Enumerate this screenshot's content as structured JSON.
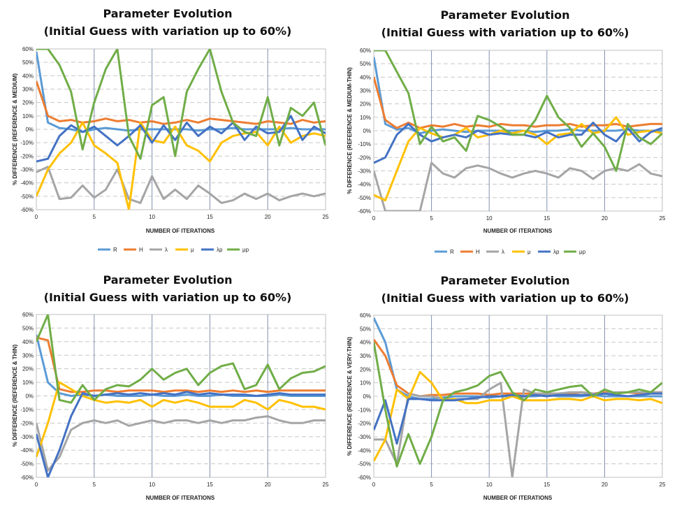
{
  "legend_labels": [
    "R",
    "H",
    "λ",
    "μ",
    "λp",
    "μp"
  ],
  "colors": {
    "R": "#5b9bd5",
    "H": "#ed7d31",
    "λ": "#a5a5a5",
    "μ": "#ffc000",
    "λp": "#4472c4",
    "μp": "#70ad47"
  },
  "chart_data": [
    {
      "type": "line",
      "title": "Parameter Evolution",
      "subtitle": "(Initial Guess with variation up to 60%)",
      "xlabel": "NUMBER OF ITERATIONS",
      "ylabel": "% DIFFERENCE (REFERENCE & MEDIUM)",
      "xlim": [
        0,
        25
      ],
      "ylim": [
        -60,
        60
      ],
      "x_ticks": [
        "0",
        "5",
        "10",
        "15",
        "20",
        "25"
      ],
      "y_ticks": [
        "60%",
        "50%",
        "40%",
        "30%",
        "20%",
        "10%",
        "0%",
        "-10%",
        "-20%",
        "-30%",
        "-40%",
        "-50%",
        "-60%"
      ],
      "x": [
        0,
        1,
        2,
        3,
        4,
        5,
        6,
        7,
        8,
        9,
        10,
        11,
        12,
        13,
        14,
        15,
        16,
        17,
        18,
        19,
        20,
        21,
        22,
        23,
        24,
        25
      ],
      "series": [
        {
          "name": "R",
          "values": [
            58,
            5,
            1,
            0,
            -2,
            0,
            1,
            0,
            -1,
            0,
            0,
            0,
            0,
            0,
            -1,
            0,
            0,
            1,
            0,
            0,
            0,
            0,
            1,
            0,
            0,
            0
          ]
        },
        {
          "name": "H",
          "values": [
            36,
            10,
            6,
            7,
            5,
            6,
            8,
            6,
            7,
            5,
            6,
            4,
            5,
            7,
            5,
            8,
            7,
            6,
            5,
            4,
            6,
            5,
            4,
            7,
            5,
            6
          ]
        },
        {
          "name": "λ",
          "values": [
            -32,
            -28,
            -52,
            -51,
            -42,
            -51,
            -45,
            -30,
            -52,
            -55,
            -35,
            -52,
            -45,
            -52,
            -42,
            -48,
            -55,
            -53,
            -48,
            -52,
            -48,
            -53,
            -50,
            -48,
            -50,
            -48
          ]
        },
        {
          "name": "μ",
          "values": [
            -50,
            -30,
            -18,
            -10,
            5,
            -12,
            -18,
            -25,
            -60,
            5,
            -8,
            -10,
            2,
            -12,
            -16,
            -24,
            -10,
            -5,
            -3,
            -2,
            -12,
            2,
            -10,
            -5,
            -3,
            -5
          ]
        },
        {
          "name": "λp",
          "values": [
            -24,
            -22,
            -5,
            3,
            -2,
            2,
            -5,
            -12,
            -5,
            3,
            -10,
            3,
            -8,
            5,
            -5,
            2,
            -3,
            5,
            -8,
            2,
            -3,
            -2,
            10,
            -8,
            2,
            -3
          ]
        },
        {
          "name": "μp",
          "values": [
            60,
            60,
            48,
            28,
            -15,
            20,
            45,
            60,
            -5,
            -22,
            18,
            24,
            -20,
            28,
            45,
            60,
            28,
            5,
            -2,
            -5,
            24,
            -12,
            16,
            10,
            20,
            -12
          ]
        }
      ]
    },
    {
      "type": "line",
      "title": "Parameter Evolution",
      "subtitle": "(Initial Guess with variation up to 60%)",
      "xlabel": "NUMBER OF ITERATIONS",
      "ylabel": "% DIFFERENCE (REFERENCE & MEDIUM-THIN)",
      "xlim": [
        0,
        25
      ],
      "ylim": [
        -60,
        60
      ],
      "x_ticks": [
        "0",
        "5",
        "10",
        "15",
        "20",
        "25"
      ],
      "y_ticks": [
        "60%",
        "50%",
        "40%",
        "30%",
        "20%",
        "10%",
        "0%",
        "-10%",
        "-20%",
        "-30%",
        "-40%",
        "-50%",
        "-60%"
      ],
      "x": [
        0,
        1,
        2,
        3,
        4,
        5,
        6,
        7,
        8,
        9,
        10,
        11,
        12,
        13,
        14,
        15,
        16,
        17,
        18,
        19,
        20,
        21,
        22,
        23,
        24,
        25
      ],
      "series": [
        {
          "name": "R",
          "values": [
            55,
            5,
            1,
            2,
            -2,
            0,
            1,
            0,
            -1,
            0,
            0,
            0,
            0,
            0,
            -1,
            0,
            0,
            1,
            0,
            0,
            0,
            0,
            1,
            0,
            0,
            0
          ]
        },
        {
          "name": "H",
          "values": [
            40,
            8,
            2,
            6,
            2,
            4,
            3,
            5,
            3,
            4,
            3,
            5,
            4,
            4,
            3,
            4,
            4,
            5,
            3,
            4,
            4,
            5,
            3,
            4,
            5,
            5
          ]
        },
        {
          "name": "λ",
          "values": [
            -30,
            -60,
            -60,
            -60,
            -60,
            -24,
            -32,
            -35,
            -28,
            -26,
            -28,
            -32,
            -35,
            -32,
            -30,
            -32,
            -35,
            -28,
            -30,
            -36,
            -30,
            -28,
            -30,
            -25,
            -32,
            -34
          ]
        },
        {
          "name": "μ",
          "values": [
            -48,
            -52,
            -30,
            -8,
            2,
            -2,
            -5,
            -3,
            2,
            -5,
            -3,
            0,
            -2,
            0,
            -3,
            -10,
            -3,
            -2,
            5,
            -2,
            0,
            10,
            -3,
            -1,
            0,
            -2
          ]
        },
        {
          "name": "λp",
          "values": [
            -24,
            -20,
            -3,
            5,
            -3,
            -8,
            -5,
            -3,
            -5,
            0,
            -3,
            -2,
            -3,
            -3,
            -5,
            -1,
            -5,
            -3,
            -3,
            6,
            -3,
            -8,
            2,
            -8,
            -1,
            2
          ]
        },
        {
          "name": "μp",
          "values": [
            60,
            60,
            44,
            28,
            -10,
            3,
            -8,
            -5,
            -15,
            11,
            8,
            3,
            -3,
            -3,
            8,
            26,
            10,
            2,
            -12,
            -2,
            -12,
            -30,
            5,
            -5,
            -10,
            -2
          ]
        }
      ]
    },
    {
      "type": "line",
      "title": "Parameter Evolution",
      "subtitle": "(Initial Guess with variation up to 60%)",
      "xlabel": "NUMBER OF ITERATIONS",
      "ylabel": "% DIFFERENCE (REFERENCE & THIN)",
      "xlim": [
        0,
        25
      ],
      "ylim": [
        -60,
        60
      ],
      "x_ticks": [
        "0",
        "5",
        "10",
        "15",
        "20",
        "25"
      ],
      "y_ticks": [
        "60%",
        "50%",
        "40%",
        "30%",
        "20%",
        "10%",
        "0%",
        "-10%",
        "-20%",
        "-30%",
        "-40%",
        "-50%",
        "-60%"
      ],
      "x": [
        0,
        1,
        2,
        3,
        4,
        5,
        6,
        7,
        8,
        9,
        10,
        11,
        12,
        13,
        14,
        15,
        16,
        17,
        18,
        19,
        20,
        21,
        22,
        23,
        24,
        25
      ],
      "series": [
        {
          "name": "R",
          "values": [
            45,
            10,
            2,
            0,
            1,
            0,
            1,
            0,
            0,
            0,
            1,
            0,
            0,
            1,
            0,
            0,
            1,
            0,
            0,
            0,
            0,
            1,
            0,
            0,
            0,
            0
          ]
        },
        {
          "name": "H",
          "values": [
            43,
            41,
            5,
            3,
            3,
            4,
            4,
            3,
            4,
            4,
            4,
            3,
            4,
            4,
            3,
            4,
            3,
            4,
            3,
            4,
            3,
            4,
            4,
            4,
            4,
            4
          ]
        },
        {
          "name": "λ",
          "values": [
            -20,
            -55,
            -45,
            -25,
            -20,
            -18,
            -20,
            -18,
            -22,
            -20,
            -18,
            -20,
            -18,
            -18,
            -20,
            -18,
            -20,
            -18,
            -18,
            -16,
            -15,
            -18,
            -20,
            -20,
            -18,
            -18
          ]
        },
        {
          "name": "μ",
          "values": [
            -45,
            -20,
            10,
            5,
            0,
            -3,
            -5,
            -4,
            -5,
            -3,
            -8,
            -3,
            -5,
            -3,
            -5,
            -8,
            -8,
            -8,
            -3,
            -5,
            -10,
            -3,
            -5,
            -8,
            -8,
            -10
          ]
        },
        {
          "name": "λp",
          "values": [
            -28,
            -60,
            -40,
            -15,
            2,
            0,
            1,
            2,
            1,
            2,
            1,
            2,
            1,
            3,
            1,
            2,
            1,
            1,
            1,
            0,
            1,
            2,
            1,
            1,
            1,
            1
          ]
        },
        {
          "name": "μp",
          "values": [
            40,
            60,
            -3,
            -5,
            8,
            -3,
            5,
            8,
            7,
            12,
            20,
            12,
            17,
            20,
            8,
            17,
            22,
            24,
            5,
            8,
            23,
            5,
            13,
            17,
            18,
            22
          ]
        }
      ]
    },
    {
      "type": "line",
      "title": "Parameter Evolution",
      "subtitle": "(Initial Guess with variation up to 60%)",
      "xlabel": "NUMBER OF ITERATIONS",
      "ylabel": "% DIFFERENCE (REFERENCE & VERY-THIN)",
      "xlim": [
        0,
        25
      ],
      "ylim": [
        -60,
        60
      ],
      "x_ticks": [
        "0",
        "5",
        "10",
        "15",
        "20",
        "25"
      ],
      "y_ticks": [
        "60%",
        "50%",
        "40%",
        "30%",
        "20%",
        "10%",
        "0%",
        "-10%",
        "-20%",
        "-30%",
        "-40%",
        "-50%",
        "-60%"
      ],
      "x": [
        0,
        1,
        2,
        3,
        4,
        5,
        6,
        7,
        8,
        9,
        10,
        11,
        12,
        13,
        14,
        15,
        16,
        17,
        18,
        19,
        20,
        21,
        22,
        23,
        24,
        25
      ],
      "series": [
        {
          "name": "R",
          "values": [
            58,
            40,
            5,
            0,
            -2,
            -2,
            -1,
            0,
            0,
            0,
            -1,
            0,
            0,
            0,
            0,
            1,
            0,
            0,
            0,
            1,
            0,
            0,
            0,
            0,
            0,
            0
          ]
        },
        {
          "name": "H",
          "values": [
            42,
            30,
            8,
            2,
            0,
            1,
            1,
            2,
            2,
            2,
            1,
            2,
            2,
            2,
            2,
            2,
            2,
            2,
            3,
            2,
            3,
            2,
            3,
            2,
            3,
            3
          ]
        },
        {
          "name": "λ",
          "values": [
            -32,
            -32,
            -50,
            2,
            0,
            0,
            -2,
            -2,
            -2,
            -2,
            5,
            10,
            -60,
            5,
            2,
            2,
            2,
            3,
            3,
            2,
            2,
            3,
            3,
            3,
            3,
            3
          ]
        },
        {
          "name": "μ",
          "values": [
            -48,
            -32,
            5,
            -2,
            18,
            10,
            -3,
            -2,
            -5,
            -5,
            -3,
            -3,
            0,
            -3,
            -3,
            -3,
            -2,
            -2,
            -3,
            0,
            -3,
            -2,
            -2,
            -3,
            -2,
            -5
          ]
        },
        {
          "name": "λp",
          "values": [
            -25,
            -3,
            -35,
            -2,
            -2,
            -3,
            -3,
            -3,
            -2,
            -1,
            0,
            0,
            1,
            0,
            1,
            0,
            1,
            1,
            1,
            1,
            2,
            1,
            0,
            1,
            2,
            2
          ]
        },
        {
          "name": "μp",
          "values": [
            40,
            -10,
            -52,
            -28,
            -50,
            -30,
            -3,
            3,
            5,
            8,
            15,
            18,
            3,
            -3,
            5,
            3,
            5,
            7,
            8,
            0,
            5,
            2,
            3,
            5,
            3,
            10
          ]
        }
      ]
    }
  ]
}
